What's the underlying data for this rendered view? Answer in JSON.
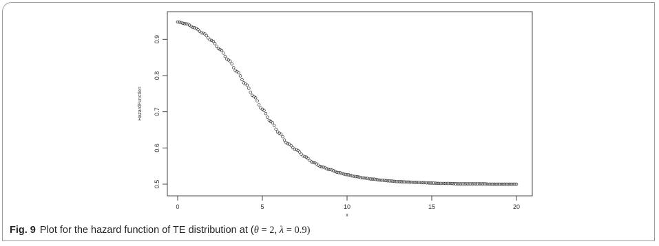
{
  "figure": {
    "label": "Fig. 9",
    "caption_text": "Plot for the hazard function of TE distribution at (",
    "caption_theta": "θ",
    "caption_eq1": " = 2, ",
    "caption_lambda": "λ",
    "caption_eq2": " = 0.9)"
  },
  "chart_data": {
    "type": "scatter",
    "title": "",
    "xlabel": "x",
    "ylabel": "HazardFunction",
    "xlim": [
      0,
      20
    ],
    "ylim": [
      0.49,
      0.96
    ],
    "x_ticks": [
      0,
      5,
      10,
      15,
      20
    ],
    "y_ticks": [
      0.5,
      0.6,
      0.7,
      0.8,
      0.9
    ],
    "x_tick_labels": [
      "0",
      "5",
      "10",
      "15",
      "20"
    ],
    "y_tick_labels": [
      "0.5",
      "0.6",
      "0.7",
      "0.8",
      "0.9"
    ],
    "marker": "open-circle",
    "grid": false,
    "series": [
      {
        "x": [
          0,
          0.5,
          1,
          1.5,
          2,
          2.5,
          3,
          3.5,
          4,
          4.5,
          5,
          5.5,
          6,
          6.5,
          7,
          7.5,
          8,
          8.5,
          9,
          9.5,
          10,
          10.5,
          11,
          11.5,
          12,
          12.5,
          13,
          13.5,
          14,
          14.5,
          15,
          15.5,
          16,
          16.5,
          17,
          17.5,
          18,
          18.5,
          19,
          19.5,
          20
        ],
        "values": [
          0.948,
          0.943,
          0.932,
          0.917,
          0.897,
          0.872,
          0.843,
          0.811,
          0.777,
          0.742,
          0.707,
          0.673,
          0.641,
          0.612,
          0.595,
          0.576,
          0.56,
          0.548,
          0.54,
          0.532,
          0.526,
          0.521,
          0.517,
          0.514,
          0.511,
          0.509,
          0.507,
          0.506,
          0.505,
          0.504,
          0.503,
          0.502,
          0.502,
          0.501,
          0.501,
          0.501,
          0.501,
          0.5,
          0.5,
          0.5,
          0.5
        ]
      }
    ],
    "colors": {
      "marker": "#333333",
      "axis": "#444444"
    }
  }
}
